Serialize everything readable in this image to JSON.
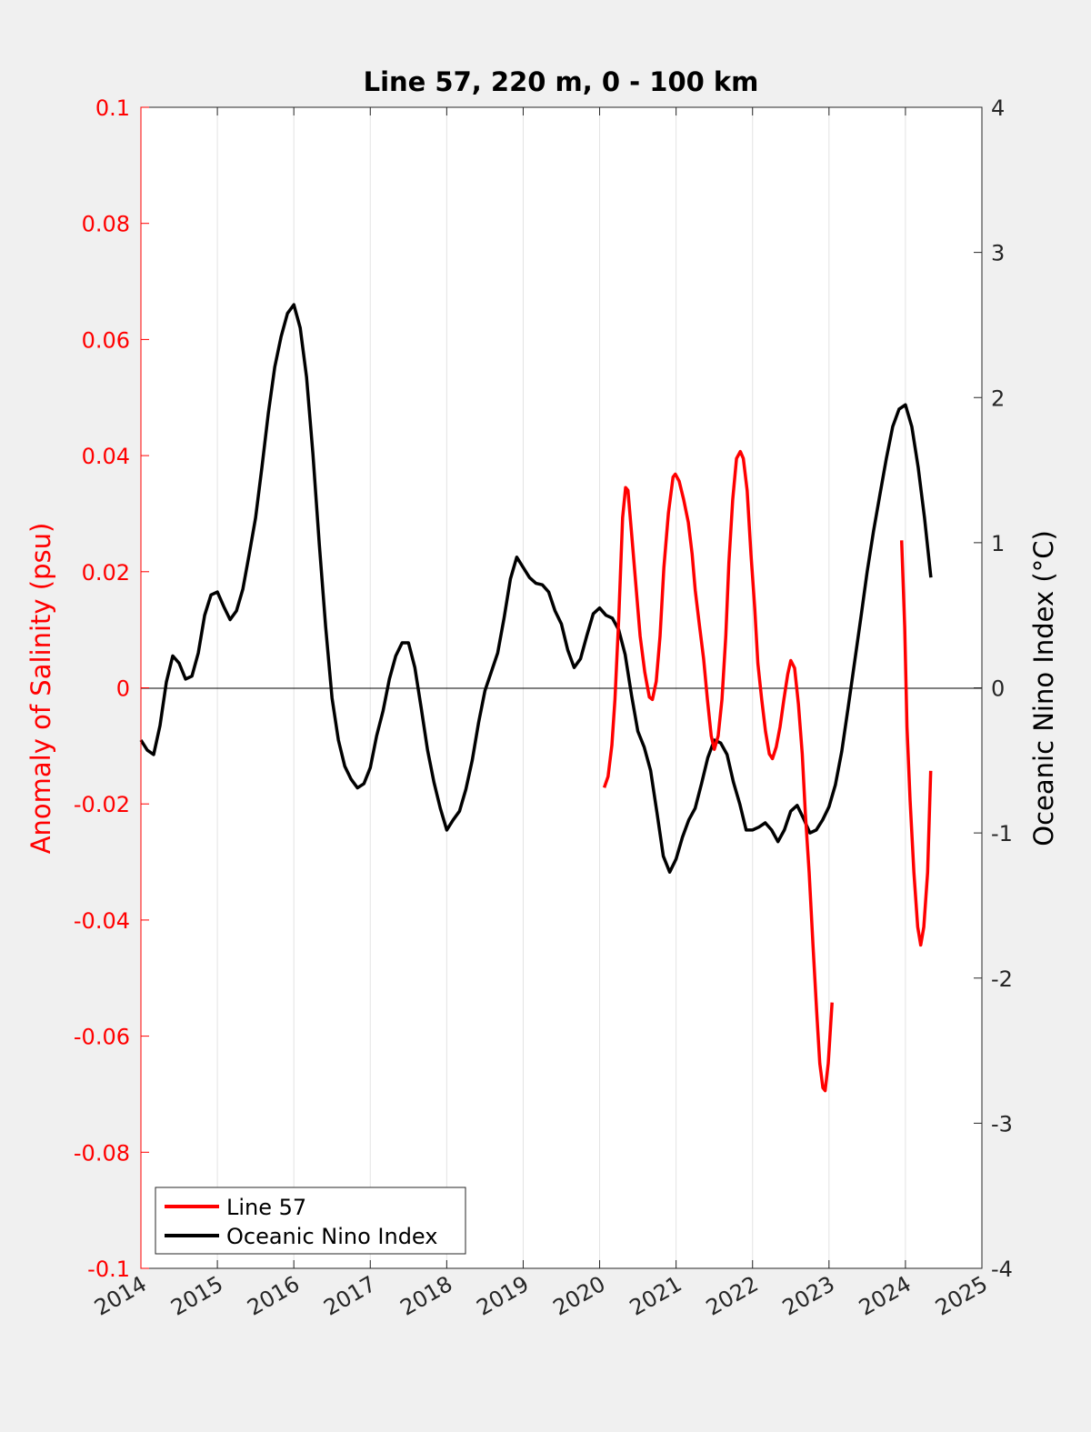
{
  "chart_data": {
    "type": "line",
    "title": "Line 57, 220 m, 0 - 100 km",
    "xlabel": "",
    "ylabel_left": "Anomaly of Salinity (psu)",
    "ylabel_right": "Oceanic Nino Index (°C)",
    "xlim": [
      2014,
      2025
    ],
    "ylim_left": [
      -0.1,
      0.1
    ],
    "ylim_right": [
      -4,
      4
    ],
    "x_ticks": [
      "2014",
      "2015",
      "2016",
      "2017",
      "2018",
      "2019",
      "2020",
      "2021",
      "2022",
      "2023",
      "2024",
      "2025"
    ],
    "y_left_ticks": [
      "0.1",
      "0.08",
      "0.06",
      "0.04",
      "0.02",
      "0",
      "-0.02",
      "-0.04",
      "-0.06",
      "-0.08",
      "-0.1"
    ],
    "y_right_ticks": [
      "4",
      "3",
      "2",
      "1",
      "0",
      "-1",
      "-2",
      "-3",
      "-4"
    ],
    "grid": "vertical",
    "legend_position": "bottom-left",
    "colors": {
      "left_axis": "#ff0000",
      "line57": "#ff0000",
      "oni": "#000000",
      "background": "#f0f0f0"
    },
    "series": [
      {
        "name": "Line 57",
        "axis": "left",
        "segments": [
          [
            [
              2020.06,
              -0.0172
            ],
            [
              2020.11,
              -0.0153
            ],
            [
              2020.16,
              -0.0099
            ],
            [
              2020.2,
              -0.002
            ],
            [
              2020.25,
              0.0121
            ],
            [
              2020.3,
              0.0293
            ],
            [
              2020.34,
              0.0345
            ],
            [
              2020.37,
              0.034
            ],
            [
              2020.42,
              0.0262
            ],
            [
              2020.47,
              0.0183
            ],
            [
              2020.53,
              0.0089
            ],
            [
              2020.59,
              0.0027
            ],
            [
              2020.65,
              -0.0016
            ],
            [
              2020.69,
              -0.002
            ],
            [
              2020.74,
              0.0011
            ],
            [
              2020.79,
              0.0089
            ],
            [
              2020.84,
              0.0207
            ],
            [
              2020.9,
              0.0301
            ],
            [
              2020.96,
              0.0363
            ],
            [
              2020.99,
              0.0368
            ],
            [
              2021.04,
              0.0356
            ],
            [
              2021.1,
              0.0324
            ],
            [
              2021.16,
              0.0285
            ],
            [
              2021.21,
              0.023
            ],
            [
              2021.25,
              0.0168
            ],
            [
              2021.3,
              0.0113
            ],
            [
              2021.36,
              0.005
            ],
            [
              2021.41,
              -0.002
            ],
            [
              2021.46,
              -0.0083
            ],
            [
              2021.5,
              -0.0106
            ],
            [
              2021.55,
              -0.0083
            ],
            [
              2021.6,
              -0.002
            ],
            [
              2021.65,
              0.0089
            ],
            [
              2021.69,
              0.0215
            ],
            [
              2021.74,
              0.0324
            ],
            [
              2021.79,
              0.0395
            ],
            [
              2021.84,
              0.0407
            ],
            [
              2021.88,
              0.0395
            ],
            [
              2021.93,
              0.034
            ],
            [
              2021.98,
              0.023
            ],
            [
              2022.03,
              0.0136
            ],
            [
              2022.07,
              0.0042
            ],
            [
              2022.12,
              -0.002
            ],
            [
              2022.17,
              -0.0075
            ],
            [
              2022.22,
              -0.0114
            ],
            [
              2022.26,
              -0.0122
            ],
            [
              2022.31,
              -0.0102
            ],
            [
              2022.36,
              -0.0067
            ],
            [
              2022.41,
              -0.002
            ],
            [
              2022.46,
              0.0023
            ],
            [
              2022.5,
              0.0047
            ],
            [
              2022.55,
              0.0034
            ],
            [
              2022.6,
              -0.0028
            ],
            [
              2022.65,
              -0.0114
            ],
            [
              2022.69,
              -0.0216
            ],
            [
              2022.74,
              -0.0318
            ],
            [
              2022.79,
              -0.0443
            ],
            [
              2022.84,
              -0.0561
            ],
            [
              2022.88,
              -0.0647
            ],
            [
              2022.92,
              -0.0689
            ],
            [
              2022.95,
              -0.0694
            ],
            [
              2022.99,
              -0.0647
            ],
            [
              2023.04,
              -0.0542
            ]
          ],
          [
            [
              2023.95,
              0.0254
            ],
            [
              2023.99,
              0.0105
            ],
            [
              2024.02,
              -0.0067
            ],
            [
              2024.06,
              -0.0193
            ],
            [
              2024.11,
              -0.0318
            ],
            [
              2024.16,
              -0.0412
            ],
            [
              2024.2,
              -0.0443
            ],
            [
              2024.24,
              -0.0412
            ],
            [
              2024.29,
              -0.0318
            ],
            [
              2024.33,
              -0.0143
            ]
          ]
        ]
      },
      {
        "name": "Oceanic Nino Index",
        "axis": "right",
        "x_start": 2014.0,
        "x_step_years": 0.08333,
        "values": [
          -0.36,
          -0.43,
          -0.46,
          -0.26,
          0.04,
          0.22,
          0.17,
          0.06,
          0.08,
          0.24,
          0.5,
          0.64,
          0.66,
          0.56,
          0.47,
          0.53,
          0.68,
          0.92,
          1.17,
          1.52,
          1.89,
          2.21,
          2.42,
          2.58,
          2.64,
          2.48,
          2.14,
          1.61,
          0.99,
          0.42,
          -0.07,
          -0.36,
          -0.54,
          -0.63,
          -0.69,
          -0.66,
          -0.55,
          -0.33,
          -0.16,
          0.06,
          0.22,
          0.31,
          0.31,
          0.14,
          -0.14,
          -0.43,
          -0.65,
          -0.83,
          -0.98,
          -0.91,
          -0.85,
          -0.7,
          -0.5,
          -0.24,
          -0.02,
          0.11,
          0.24,
          0.48,
          0.75,
          0.9,
          0.83,
          0.76,
          0.72,
          0.71,
          0.66,
          0.53,
          0.44,
          0.26,
          0.14,
          0.2,
          0.36,
          0.51,
          0.55,
          0.5,
          0.48,
          0.4,
          0.23,
          -0.05,
          -0.3,
          -0.41,
          -0.57,
          -0.86,
          -1.16,
          -1.27,
          -1.18,
          -1.03,
          -0.91,
          -0.83,
          -0.66,
          -0.48,
          -0.36,
          -0.38,
          -0.46,
          -0.65,
          -0.8,
          -0.98,
          -0.98,
          -0.96,
          -0.93,
          -0.98,
          -1.06,
          -0.98,
          -0.85,
          -0.81,
          -0.9,
          -1.0,
          -0.98,
          -0.91,
          -0.82,
          -0.67,
          -0.44,
          -0.14,
          0.17,
          0.48,
          0.8,
          1.08,
          1.33,
          1.58,
          1.8,
          1.92,
          1.95,
          1.8,
          1.52,
          1.17,
          0.76
        ]
      }
    ]
  }
}
